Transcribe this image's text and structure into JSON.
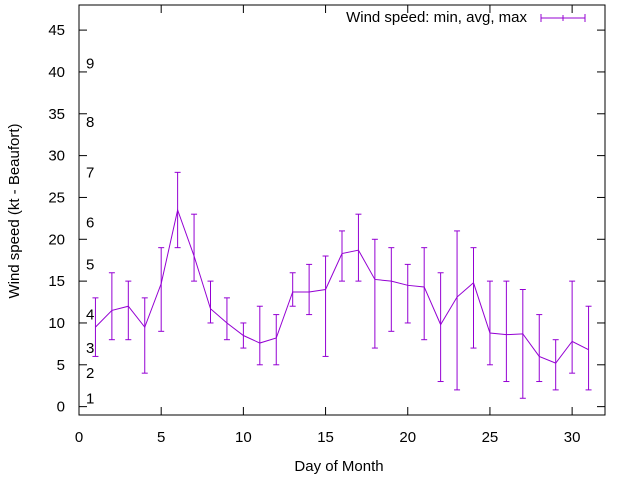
{
  "chart_data": {
    "type": "line",
    "xlabel": "Day of Month",
    "ylabel": "Wind speed (kt - Beaufort)",
    "xlim": [
      0,
      32
    ],
    "ylim": [
      -1,
      48
    ],
    "x_ticks": [
      0,
      5,
      10,
      15,
      20,
      25,
      30
    ],
    "y_ticks": [
      0,
      5,
      10,
      15,
      20,
      25,
      30,
      35,
      40,
      45
    ],
    "grid": false,
    "legend_position": "top-right",
    "beaufort_labels": [
      {
        "label": "1",
        "y": 1
      },
      {
        "label": "2",
        "y": 4
      },
      {
        "label": "3",
        "y": 7
      },
      {
        "label": "4",
        "y": 11
      },
      {
        "label": "5",
        "y": 17
      },
      {
        "label": "6",
        "y": 22
      },
      {
        "label": "7",
        "y": 28
      },
      {
        "label": "8",
        "y": 34
      },
      {
        "label": "9",
        "y": 41
      }
    ],
    "series": [
      {
        "name": "Wind speed: min, avg, max",
        "color": "#9400d3",
        "x": [
          1,
          2,
          3,
          4,
          5,
          6,
          7,
          8,
          9,
          10,
          11,
          12,
          13,
          14,
          15,
          16,
          17,
          18,
          19,
          20,
          21,
          22,
          23,
          24,
          25,
          26,
          27,
          28,
          29,
          30,
          31
        ],
        "avg": [
          9.5,
          11.5,
          12,
          9.5,
          14.7,
          23.5,
          18,
          11.7,
          10,
          8.5,
          7.6,
          8.2,
          13.7,
          13.7,
          14,
          18.3,
          18.7,
          15.2,
          15,
          14.5,
          14.3,
          9.8,
          13.1,
          14.8,
          8.8,
          8.6,
          8.7,
          6,
          5.2,
          7.8,
          6.8
        ],
        "min": [
          6,
          8,
          8,
          4,
          9,
          19,
          15,
          10,
          8,
          7,
          5,
          5,
          12,
          11,
          6,
          15,
          15,
          7,
          9,
          10,
          8,
          3,
          2,
          7,
          5,
          3,
          1,
          3,
          2,
          4,
          2
        ],
        "max": [
          13,
          16,
          15,
          13,
          19,
          28,
          23,
          15,
          13,
          10,
          12,
          11,
          16,
          17,
          18,
          21,
          23,
          20,
          19,
          17,
          19,
          16,
          21,
          19,
          15,
          15,
          14,
          11,
          8,
          15,
          12
        ]
      }
    ]
  }
}
